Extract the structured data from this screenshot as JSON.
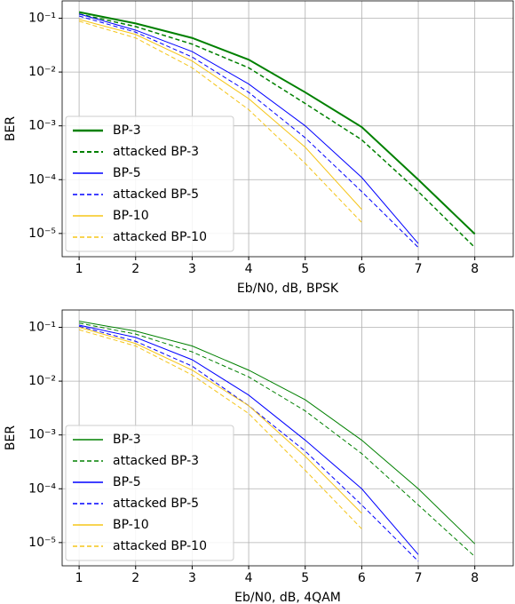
{
  "chart_data": [
    {
      "type": "line",
      "xlabel": "Eb/N0, dB, BPSK",
      "ylabel": "BER",
      "ylog": true,
      "grid": true,
      "legend": "lower left",
      "x": [
        1,
        2,
        3,
        4,
        5,
        6,
        7,
        8
      ],
      "xlim": [
        0.7,
        8.68
      ],
      "xticks": [
        1,
        2,
        3,
        4,
        5,
        6,
        7,
        8
      ],
      "ylim": [
        3.7e-06,
        0.21
      ],
      "yticks": [
        {
          "value": 0.1,
          "label": "10⁻¹"
        },
        {
          "value": 0.01,
          "label": "10⁻²"
        },
        {
          "value": 0.001,
          "label": "10⁻³"
        },
        {
          "value": 0.0001,
          "label": "10⁻⁴"
        },
        {
          "value": 1e-05,
          "label": "10⁻⁵"
        }
      ],
      "series": [
        {
          "name": "BP-3",
          "color": "#008000",
          "dashed": false,
          "width": 2,
          "values": [
            0.13,
            0.08,
            0.043,
            0.017,
            0.0042,
            0.00095,
            0.0001,
            9.8e-06
          ]
        },
        {
          "name": "attacked BP-3",
          "color": "#008000",
          "dashed": true,
          "width": 1.5,
          "values": [
            0.12,
            0.07,
            0.033,
            0.012,
            0.0026,
            0.00055,
            6e-05,
            5.5e-06
          ]
        },
        {
          "name": "BP-5",
          "color": "#0000ff",
          "dashed": false,
          "width": 1,
          "values": [
            0.12,
            0.06,
            0.024,
            0.006,
            0.001,
            0.00011,
            6.5e-06,
            null
          ]
        },
        {
          "name": "attacked BP-5",
          "color": "#0000ff",
          "dashed": true,
          "width": 1,
          "values": [
            0.11,
            0.055,
            0.019,
            0.0042,
            0.0006,
            6e-05,
            5.5e-06,
            null
          ]
        },
        {
          "name": "BP-10",
          "color": "#f5c518",
          "dashed": false,
          "width": 1,
          "values": [
            0.095,
            0.05,
            0.016,
            0.0032,
            0.0004,
            2.8e-05,
            null,
            null
          ]
        },
        {
          "name": "attacked BP-10",
          "color": "#f5c518",
          "dashed": true,
          "width": 1,
          "values": [
            0.088,
            0.043,
            0.012,
            0.002,
            0.0002,
            1.6e-05,
            null,
            null
          ]
        }
      ]
    },
    {
      "type": "line",
      "xlabel": "Eb/N0, dB, 4QAM",
      "ylabel": "BER",
      "ylog": true,
      "grid": true,
      "legend": "lower left",
      "x": [
        1,
        2,
        3,
        4,
        5,
        6,
        7,
        8
      ],
      "xlim": [
        0.7,
        8.68
      ],
      "xticks": [
        1,
        2,
        3,
        4,
        5,
        6,
        7,
        8
      ],
      "ylim": [
        3.7e-06,
        0.21
      ],
      "yticks": [
        {
          "value": 0.1,
          "label": "10⁻¹"
        },
        {
          "value": 0.01,
          "label": "10⁻²"
        },
        {
          "value": 0.001,
          "label": "10⁻³"
        },
        {
          "value": 0.0001,
          "label": "10⁻⁴"
        },
        {
          "value": 1e-05,
          "label": "10⁻⁵"
        }
      ],
      "series": [
        {
          "name": "BP-3",
          "color": "#008000",
          "dashed": false,
          "width": 1,
          "values": [
            0.13,
            0.085,
            0.045,
            0.016,
            0.0045,
            0.0008,
            0.0001,
            9.5e-06
          ]
        },
        {
          "name": "attacked BP-3",
          "color": "#008000",
          "dashed": true,
          "width": 1,
          "values": [
            0.12,
            0.075,
            0.035,
            0.012,
            0.0028,
            0.00045,
            5e-05,
            5.5e-06
          ]
        },
        {
          "name": "BP-5",
          "color": "#0000ff",
          "dashed": false,
          "width": 1,
          "values": [
            0.11,
            0.065,
            0.025,
            0.0055,
            0.0008,
            0.0001,
            6e-06,
            null
          ]
        },
        {
          "name": "attacked BP-5",
          "color": "#0000ff",
          "dashed": true,
          "width": 1,
          "values": [
            0.105,
            0.055,
            0.019,
            0.0035,
            0.0005,
            5e-05,
            4.5e-06,
            null
          ]
        },
        {
          "name": "BP-10",
          "color": "#f5c518",
          "dashed": false,
          "width": 1,
          "values": [
            0.1,
            0.05,
            0.016,
            0.0035,
            0.0004,
            3.5e-05,
            null,
            null
          ]
        },
        {
          "name": "attacked BP-10",
          "color": "#f5c518",
          "dashed": true,
          "width": 1,
          "values": [
            0.09,
            0.045,
            0.013,
            0.0025,
            0.00022,
            1.8e-05,
            null,
            null
          ]
        }
      ]
    }
  ]
}
